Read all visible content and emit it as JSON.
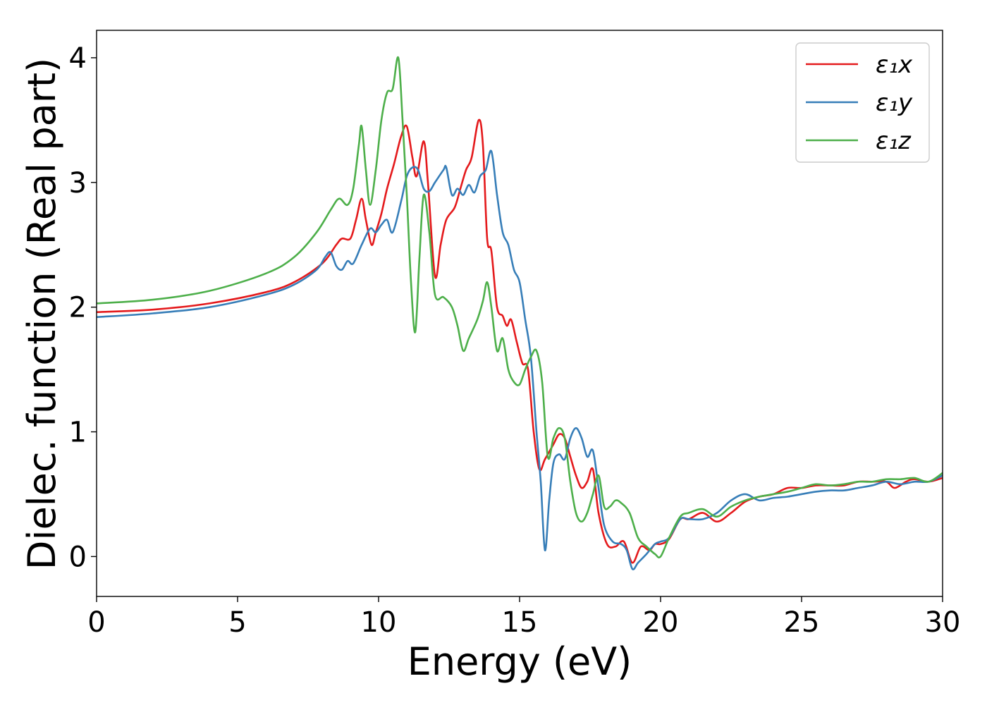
{
  "chart_data": {
    "type": "line",
    "title": "",
    "xlabel": "Energy (eV)",
    "ylabel": "Dielec. function (Real part)",
    "xlim": [
      0,
      30
    ],
    "ylim": [
      -0.32,
      4.22
    ],
    "xticks": [
      0,
      5,
      10,
      15,
      20,
      25,
      30
    ],
    "yticks": [
      0,
      1,
      2,
      3,
      4
    ],
    "grid": false,
    "legend_position": "top-right",
    "series": [
      {
        "name": "ε₁x",
        "color": "#e41a1c",
        "points": [
          [
            0,
            1.96
          ],
          [
            2,
            1.98
          ],
          [
            4,
            2.03
          ],
          [
            6,
            2.12
          ],
          [
            7,
            2.2
          ],
          [
            8,
            2.35
          ],
          [
            8.5,
            2.5
          ],
          [
            8.7,
            2.55
          ],
          [
            9,
            2.55
          ],
          [
            9.2,
            2.7
          ],
          [
            9.4,
            2.87
          ],
          [
            9.55,
            2.7
          ],
          [
            9.75,
            2.5
          ],
          [
            9.9,
            2.6
          ],
          [
            10.1,
            2.75
          ],
          [
            10.3,
            2.95
          ],
          [
            10.55,
            3.15
          ],
          [
            10.8,
            3.37
          ],
          [
            11,
            3.45
          ],
          [
            11.2,
            3.2
          ],
          [
            11.35,
            3.05
          ],
          [
            11.6,
            3.33
          ],
          [
            11.75,
            3.0
          ],
          [
            12.0,
            2.25
          ],
          [
            12.2,
            2.5
          ],
          [
            12.4,
            2.7
          ],
          [
            12.7,
            2.8
          ],
          [
            12.9,
            2.95
          ],
          [
            13.1,
            3.1
          ],
          [
            13.3,
            3.2
          ],
          [
            13.55,
            3.5
          ],
          [
            13.7,
            3.3
          ],
          [
            13.85,
            2.55
          ],
          [
            14.0,
            2.45
          ],
          [
            14.2,
            2.0
          ],
          [
            14.4,
            1.93
          ],
          [
            14.55,
            1.85
          ],
          [
            14.7,
            1.9
          ],
          [
            14.9,
            1.72
          ],
          [
            15.1,
            1.55
          ],
          [
            15.3,
            1.5
          ],
          [
            15.5,
            1.0
          ],
          [
            15.7,
            0.7
          ],
          [
            15.9,
            0.78
          ],
          [
            16.2,
            0.9
          ],
          [
            16.4,
            0.98
          ],
          [
            16.6,
            0.95
          ],
          [
            16.8,
            0.8
          ],
          [
            17.0,
            0.65
          ],
          [
            17.2,
            0.55
          ],
          [
            17.4,
            0.6
          ],
          [
            17.6,
            0.7
          ],
          [
            17.8,
            0.35
          ],
          [
            18.1,
            0.1
          ],
          [
            18.4,
            0.08
          ],
          [
            18.7,
            0.12
          ],
          [
            19.0,
            -0.05
          ],
          [
            19.3,
            0.08
          ],
          [
            19.6,
            0.05
          ],
          [
            19.8,
            0.1
          ],
          [
            20.0,
            0.1
          ],
          [
            20.3,
            0.14
          ],
          [
            20.7,
            0.3
          ],
          [
            21.0,
            0.3
          ],
          [
            21.5,
            0.35
          ],
          [
            22.0,
            0.28
          ],
          [
            22.5,
            0.35
          ],
          [
            23.0,
            0.44
          ],
          [
            23.5,
            0.48
          ],
          [
            24.0,
            0.5
          ],
          [
            24.5,
            0.55
          ],
          [
            25.0,
            0.55
          ],
          [
            25.5,
            0.57
          ],
          [
            26.0,
            0.57
          ],
          [
            26.5,
            0.57
          ],
          [
            27.0,
            0.6
          ],
          [
            27.5,
            0.6
          ],
          [
            28.0,
            0.6
          ],
          [
            28.3,
            0.55
          ],
          [
            28.7,
            0.6
          ],
          [
            29.0,
            0.62
          ],
          [
            29.5,
            0.6
          ],
          [
            30.0,
            0.63
          ]
        ]
      },
      {
        "name": "ε₁y",
        "color": "#377eb8",
        "points": [
          [
            0,
            1.92
          ],
          [
            2,
            1.95
          ],
          [
            4,
            2.0
          ],
          [
            6,
            2.1
          ],
          [
            7,
            2.18
          ],
          [
            7.8,
            2.3
          ],
          [
            8.1,
            2.4
          ],
          [
            8.3,
            2.44
          ],
          [
            8.5,
            2.33
          ],
          [
            8.7,
            2.3
          ],
          [
            8.9,
            2.37
          ],
          [
            9.1,
            2.35
          ],
          [
            9.4,
            2.5
          ],
          [
            9.7,
            2.63
          ],
          [
            9.9,
            2.6
          ],
          [
            10.1,
            2.66
          ],
          [
            10.3,
            2.7
          ],
          [
            10.5,
            2.6
          ],
          [
            10.8,
            2.85
          ],
          [
            11.0,
            3.05
          ],
          [
            11.2,
            3.12
          ],
          [
            11.4,
            3.1
          ],
          [
            11.6,
            2.95
          ],
          [
            11.8,
            2.93
          ],
          [
            12.0,
            3.0
          ],
          [
            12.3,
            3.1
          ],
          [
            12.4,
            3.12
          ],
          [
            12.6,
            2.9
          ],
          [
            12.8,
            2.95
          ],
          [
            13.0,
            2.9
          ],
          [
            13.2,
            2.98
          ],
          [
            13.4,
            2.92
          ],
          [
            13.6,
            3.05
          ],
          [
            13.8,
            3.1
          ],
          [
            14.0,
            3.25
          ],
          [
            14.2,
            2.9
          ],
          [
            14.4,
            2.6
          ],
          [
            14.6,
            2.5
          ],
          [
            14.8,
            2.3
          ],
          [
            15.0,
            2.2
          ],
          [
            15.2,
            1.9
          ],
          [
            15.4,
            1.6
          ],
          [
            15.6,
            1.0
          ],
          [
            15.75,
            0.6
          ],
          [
            15.9,
            0.05
          ],
          [
            16.05,
            0.45
          ],
          [
            16.2,
            0.75
          ],
          [
            16.4,
            0.82
          ],
          [
            16.6,
            0.78
          ],
          [
            16.8,
            0.95
          ],
          [
            17.0,
            1.03
          ],
          [
            17.2,
            0.95
          ],
          [
            17.4,
            0.8
          ],
          [
            17.6,
            0.85
          ],
          [
            17.8,
            0.55
          ],
          [
            18.0,
            0.25
          ],
          [
            18.3,
            0.12
          ],
          [
            18.6,
            0.1
          ],
          [
            18.8,
            0.05
          ],
          [
            19.0,
            -0.1
          ],
          [
            19.2,
            -0.05
          ],
          [
            19.5,
            0.02
          ],
          [
            19.8,
            0.1
          ],
          [
            20.0,
            0.12
          ],
          [
            20.3,
            0.15
          ],
          [
            20.7,
            0.3
          ],
          [
            21.0,
            0.3
          ],
          [
            21.5,
            0.3
          ],
          [
            22.0,
            0.35
          ],
          [
            22.5,
            0.45
          ],
          [
            23.0,
            0.5
          ],
          [
            23.5,
            0.45
          ],
          [
            24.0,
            0.47
          ],
          [
            24.5,
            0.48
          ],
          [
            25.0,
            0.5
          ],
          [
            25.5,
            0.52
          ],
          [
            26.0,
            0.53
          ],
          [
            26.5,
            0.53
          ],
          [
            27.0,
            0.55
          ],
          [
            27.5,
            0.57
          ],
          [
            28.0,
            0.6
          ],
          [
            28.5,
            0.58
          ],
          [
            29.0,
            0.6
          ],
          [
            29.5,
            0.6
          ],
          [
            30.0,
            0.65
          ]
        ]
      },
      {
        "name": "ε₁z",
        "color": "#4daf4a",
        "points": [
          [
            0,
            2.03
          ],
          [
            2,
            2.06
          ],
          [
            4,
            2.13
          ],
          [
            6,
            2.27
          ],
          [
            7,
            2.4
          ],
          [
            7.8,
            2.6
          ],
          [
            8.3,
            2.78
          ],
          [
            8.6,
            2.87
          ],
          [
            8.9,
            2.82
          ],
          [
            9.1,
            2.95
          ],
          [
            9.3,
            3.3
          ],
          [
            9.4,
            3.45
          ],
          [
            9.55,
            3.1
          ],
          [
            9.7,
            2.82
          ],
          [
            9.9,
            3.1
          ],
          [
            10.1,
            3.5
          ],
          [
            10.3,
            3.72
          ],
          [
            10.5,
            3.75
          ],
          [
            10.7,
            4.0
          ],
          [
            10.85,
            3.5
          ],
          [
            11.0,
            2.9
          ],
          [
            11.15,
            2.2
          ],
          [
            11.3,
            1.8
          ],
          [
            11.45,
            2.4
          ],
          [
            11.6,
            2.9
          ],
          [
            11.8,
            2.6
          ],
          [
            12.0,
            2.1
          ],
          [
            12.3,
            2.08
          ],
          [
            12.6,
            2.0
          ],
          [
            12.8,
            1.85
          ],
          [
            13.0,
            1.65
          ],
          [
            13.2,
            1.75
          ],
          [
            13.5,
            1.9
          ],
          [
            13.7,
            2.05
          ],
          [
            13.85,
            2.2
          ],
          [
            14.0,
            2.0
          ],
          [
            14.2,
            1.65
          ],
          [
            14.4,
            1.75
          ],
          [
            14.6,
            1.5
          ],
          [
            14.8,
            1.4
          ],
          [
            15.0,
            1.38
          ],
          [
            15.2,
            1.5
          ],
          [
            15.4,
            1.6
          ],
          [
            15.6,
            1.65
          ],
          [
            15.8,
            1.4
          ],
          [
            16.0,
            0.8
          ],
          [
            16.2,
            0.95
          ],
          [
            16.4,
            1.03
          ],
          [
            16.6,
            0.95
          ],
          [
            16.8,
            0.6
          ],
          [
            17.0,
            0.35
          ],
          [
            17.2,
            0.28
          ],
          [
            17.4,
            0.35
          ],
          [
            17.6,
            0.5
          ],
          [
            17.8,
            0.65
          ],
          [
            18.0,
            0.4
          ],
          [
            18.2,
            0.4
          ],
          [
            18.4,
            0.45
          ],
          [
            18.6,
            0.43
          ],
          [
            18.9,
            0.35
          ],
          [
            19.2,
            0.15
          ],
          [
            19.5,
            0.08
          ],
          [
            19.8,
            0.02
          ],
          [
            20.0,
            0.0
          ],
          [
            20.3,
            0.15
          ],
          [
            20.7,
            0.32
          ],
          [
            21.0,
            0.35
          ],
          [
            21.5,
            0.38
          ],
          [
            22.0,
            0.32
          ],
          [
            22.5,
            0.4
          ],
          [
            23.0,
            0.45
          ],
          [
            23.5,
            0.48
          ],
          [
            24.0,
            0.5
          ],
          [
            24.5,
            0.52
          ],
          [
            25.0,
            0.55
          ],
          [
            25.5,
            0.58
          ],
          [
            26.0,
            0.57
          ],
          [
            26.5,
            0.58
          ],
          [
            27.0,
            0.6
          ],
          [
            27.5,
            0.6
          ],
          [
            28.0,
            0.62
          ],
          [
            28.5,
            0.62
          ],
          [
            29.0,
            0.63
          ],
          [
            29.5,
            0.6
          ],
          [
            30.0,
            0.67
          ]
        ]
      }
    ]
  }
}
